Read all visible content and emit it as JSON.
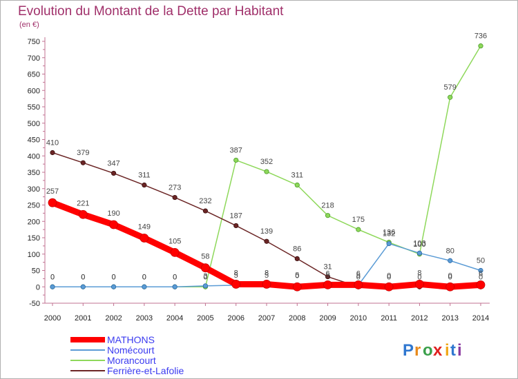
{
  "chart_data": {
    "type": "line",
    "title": "Evolution du Montant de la Dette par Habitant",
    "subtitle": "(en €)",
    "x": [
      "2000",
      "2001",
      "2002",
      "2003",
      "2004",
      "2005",
      "2006",
      "2007",
      "2008",
      "2009",
      "2010",
      "2011",
      "2012",
      "2013",
      "2014"
    ],
    "ylim": [
      -50,
      750
    ],
    "yticks": [
      -50,
      0,
      50,
      100,
      150,
      200,
      250,
      300,
      350,
      400,
      450,
      500,
      550,
      600,
      650,
      700,
      750
    ],
    "grid": false,
    "legend_position": "bottom-left",
    "series": [
      {
        "name": "MATHONS",
        "color": "#ff0000",
        "values": [
          257,
          221,
          190,
          149,
          105,
          58,
          8,
          8,
          0,
          6,
          6,
          0,
          8,
          0,
          6
        ],
        "labels": [
          "257",
          "221",
          "190",
          "149",
          "105",
          "58",
          "8",
          "8",
          "0",
          "6",
          "6",
          "0",
          "8",
          "0",
          "6"
        ]
      },
      {
        "name": "Nomécourt",
        "color": "#5a9bd5",
        "values": [
          0,
          0,
          0,
          0,
          0,
          3,
          5,
          5,
          5,
          5,
          5,
          132,
          103,
          80,
          50
        ],
        "labels": [
          "0",
          "0",
          "0",
          "0",
          "0",
          "3",
          "5",
          "5",
          "5",
          "5",
          "5",
          "132",
          "103",
          "80",
          "50"
        ]
      },
      {
        "name": "Morancourt",
        "color": "#8ed85a",
        "values": [
          0,
          0,
          0,
          0,
          0,
          0,
          387,
          352,
          311,
          218,
          175,
          136,
          100,
          579,
          736
        ],
        "labels": [
          "0",
          "0",
          "0",
          "0",
          "0",
          "0",
          "387",
          "352",
          "311",
          "218",
          "175",
          "136",
          "100",
          "579",
          "736"
        ]
      },
      {
        "name": "Ferrière-et-Lafolie",
        "color": "#6b2525",
        "values": [
          410,
          379,
          347,
          311,
          273,
          232,
          187,
          139,
          86,
          31,
          0,
          0,
          0,
          0,
          0
        ],
        "labels": [
          "410",
          "379",
          "347",
          "311",
          "273",
          "232",
          "187",
          "139",
          "86",
          "31",
          "0",
          "0",
          "0",
          "0",
          "0"
        ]
      }
    ]
  },
  "brand": {
    "letters": [
      "P",
      "r",
      "o",
      "x",
      "i",
      "t",
      "i"
    ],
    "colors": [
      "#2f77d0",
      "#e88a1c",
      "#3aa04a",
      "#e02020",
      "#f0a81a",
      "#2f77d0",
      "#8a3aa0"
    ]
  }
}
